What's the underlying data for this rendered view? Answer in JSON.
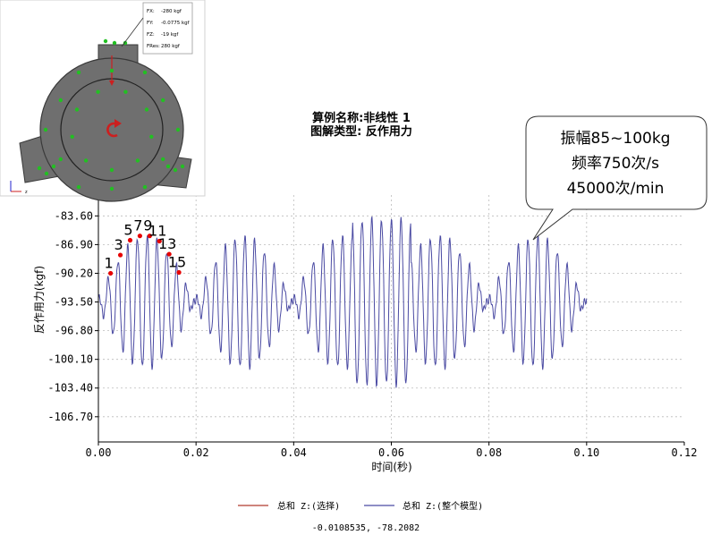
{
  "chart_data": {
    "type": "line",
    "title": "算例名称:非线性 1",
    "subtitle": "图解类型: 反作用力",
    "xlabel": "时间(秒)",
    "ylabel": "反作用力(kgf)",
    "xlim": [
      0,
      0.12
    ],
    "ylim": [
      -109.6,
      -81.2
    ],
    "x_ticks": [
      0,
      0.02,
      0.04,
      0.06,
      0.08,
      0.1,
      0.12
    ],
    "x_tick_labels": [
      "0.00",
      "0.02",
      "0.04",
      "0.06",
      "0.08",
      "0.10",
      "0.12"
    ],
    "y_ticks": [
      -83.6,
      -86.9,
      -90.2,
      -93.5,
      -96.8,
      -100.1,
      -103.4,
      -106.7
    ],
    "y_tick_labels": [
      "-83.60",
      "-86.90",
      "-90.20",
      "-93.50",
      "-96.80",
      "-100.10",
      "-103.40",
      "-106.70"
    ],
    "grid": true,
    "legend_position": "bottom",
    "series": [
      {
        "name": "总和 Z:(选择)",
        "color": "#b03a2e",
        "x": [],
        "values": []
      },
      {
        "name": "总和 Z:(整个模型)",
        "color": "#4b4ba3",
        "x": [],
        "values": []
      }
    ],
    "cursor_readout": "-0.0108535, -78.2082",
    "marked_points": [
      {
        "label": "1",
        "x": 0.0025,
        "y": -90.2
      },
      {
        "label": "3",
        "x": 0.0045,
        "y": -88.1
      },
      {
        "label": "5",
        "x": 0.0065,
        "y": -86.4
      },
      {
        "label": "7",
        "x": 0.0085,
        "y": -85.9
      },
      {
        "label": "9",
        "x": 0.0105,
        "y": -85.9
      },
      {
        "label": "11",
        "x": 0.0125,
        "y": -86.5
      },
      {
        "label": "13",
        "x": 0.0145,
        "y": -88.0
      },
      {
        "label": "15",
        "x": 0.0165,
        "y": -90.1
      }
    ],
    "marker_color": "#e60000"
  },
  "callout": {
    "lines": [
      "振幅85~100kg",
      "频率750次/s",
      "45000次/min"
    ]
  },
  "inset": {
    "fx_label": "FX:",
    "fx_value": "-280 kgf",
    "fy_label": "FY:",
    "fy_value": "-0.0775 kgf",
    "fz_label": "FZ:",
    "fz_value": "-19 kgf",
    "fres_label": "FRes:",
    "fres_value": "280 kgf",
    "axis_label": "z",
    "colors": {
      "body": "#6f6f6f",
      "dot": "#22c022",
      "arrow": "#cc1f1f"
    }
  }
}
